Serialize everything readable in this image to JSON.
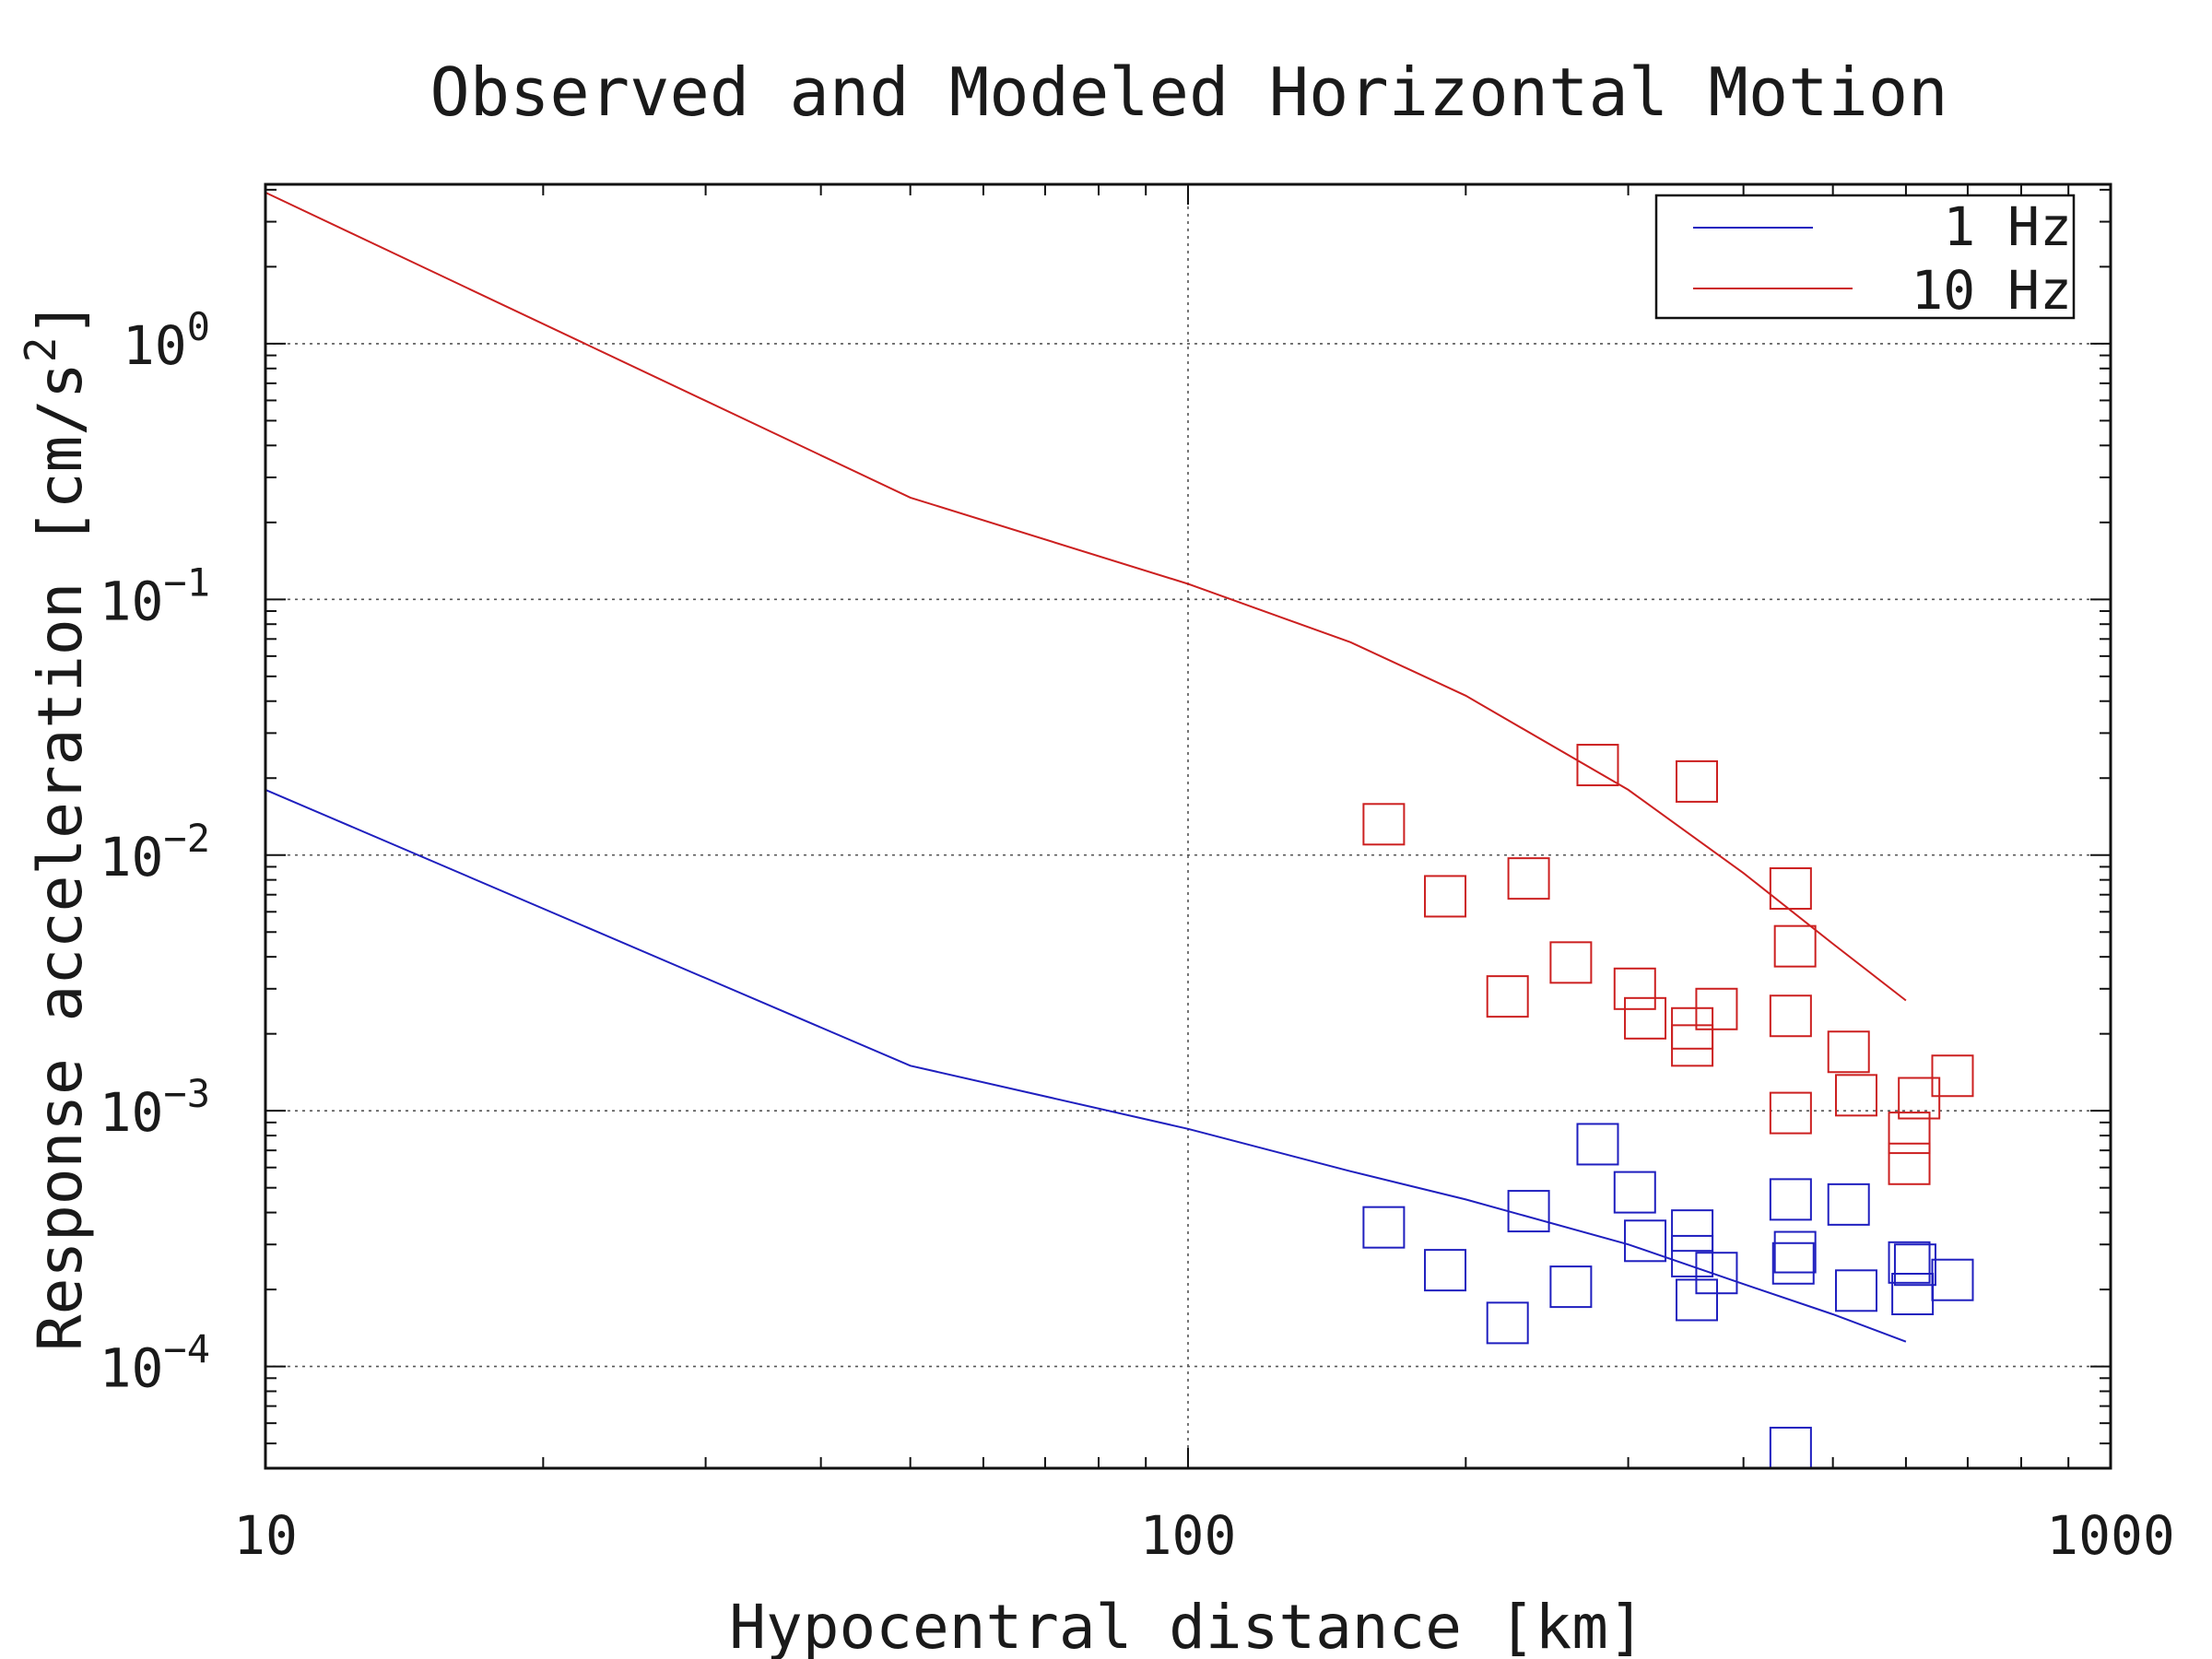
{
  "chart_data": {
    "type": "scatter",
    "title": "Observed and Modeled Horizontal Motion",
    "xlabel": "Hypocentral distance [km]",
    "ylabel": "Response acceleration [cm/s",
    "ylabel_sup": "2",
    "ylabel_end": "]",
    "xscale": "log",
    "yscale": "log",
    "xlim": [
      10,
      1000
    ],
    "ylim": [
      4e-05,
      4.2
    ],
    "x_ticks": [
      {
        "value": 10,
        "label": "10"
      },
      {
        "value": 100,
        "label": "100"
      },
      {
        "value": 1000,
        "label": "1000"
      }
    ],
    "y_ticks": [
      {
        "value": 1,
        "base": "10",
        "exp": "0"
      },
      {
        "value": 0.1,
        "base": "10",
        "exp": "−1"
      },
      {
        "value": 0.01,
        "base": "10",
        "exp": "−2"
      },
      {
        "value": 0.001,
        "base": "10",
        "exp": "−3"
      },
      {
        "value": 0.0001,
        "base": "10",
        "exp": "−4"
      }
    ],
    "grid": true,
    "legend_position": "top-right",
    "series": [
      {
        "name": "1 Hz",
        "color": "#1f1fbf",
        "line": [
          [
            10,
            0.018
          ],
          [
            50,
            0.0015
          ],
          [
            100,
            0.00085
          ],
          [
            150,
            0.00058
          ],
          [
            200,
            0.00045
          ],
          [
            300,
            0.0003
          ],
          [
            400,
            0.00021
          ],
          [
            500,
            0.00016
          ],
          [
            600,
            0.000125
          ]
        ],
        "points": [
          [
            163,
            0.00035
          ],
          [
            190,
            0.000238
          ],
          [
            222,
            0.000148
          ],
          [
            234,
            0.000405
          ],
          [
            260,
            0.000205
          ],
          [
            278,
            0.00074
          ],
          [
            305,
            0.00048
          ],
          [
            313,
            0.00031
          ],
          [
            352,
            0.00034
          ],
          [
            352,
            0.00027
          ],
          [
            356,
            0.000182
          ],
          [
            374,
            0.000232
          ],
          [
            450,
            0.00045
          ],
          [
            450,
            4.8e-05
          ],
          [
            455,
            0.00028
          ],
          [
            453,
            0.000253
          ],
          [
            520,
            0.00043
          ],
          [
            530,
            0.000198
          ],
          [
            605,
            0.000255
          ],
          [
            614,
            0.00025
          ],
          [
            610,
            0.000192
          ],
          [
            674,
            0.000218
          ]
        ]
      },
      {
        "name": "10 Hz",
        "color": "#cc2020",
        "line": [
          [
            10,
            3.9
          ],
          [
            50,
            0.25
          ],
          [
            100,
            0.115
          ],
          [
            150,
            0.068
          ],
          [
            200,
            0.042
          ],
          [
            300,
            0.018
          ],
          [
            400,
            0.0085
          ],
          [
            500,
            0.0045
          ],
          [
            600,
            0.0027
          ]
        ],
        "points": [
          [
            163,
            0.0132
          ],
          [
            190,
            0.0069
          ],
          [
            222,
            0.0028
          ],
          [
            234,
            0.0081
          ],
          [
            260,
            0.0038
          ],
          [
            278,
            0.0225
          ],
          [
            305,
            0.003
          ],
          [
            313,
            0.0023
          ],
          [
            352,
            0.0021
          ],
          [
            352,
            0.0018
          ],
          [
            356,
            0.0194
          ],
          [
            374,
            0.0025
          ],
          [
            450,
            0.0074
          ],
          [
            450,
            0.00235
          ],
          [
            450,
            0.00098
          ],
          [
            455,
            0.0044
          ],
          [
            520,
            0.0017
          ],
          [
            530,
            0.00115
          ],
          [
            605,
            0.00082
          ],
          [
            605,
            0.00062
          ],
          [
            620,
            0.00112
          ],
          [
            674,
            0.00137
          ]
        ]
      }
    ]
  }
}
